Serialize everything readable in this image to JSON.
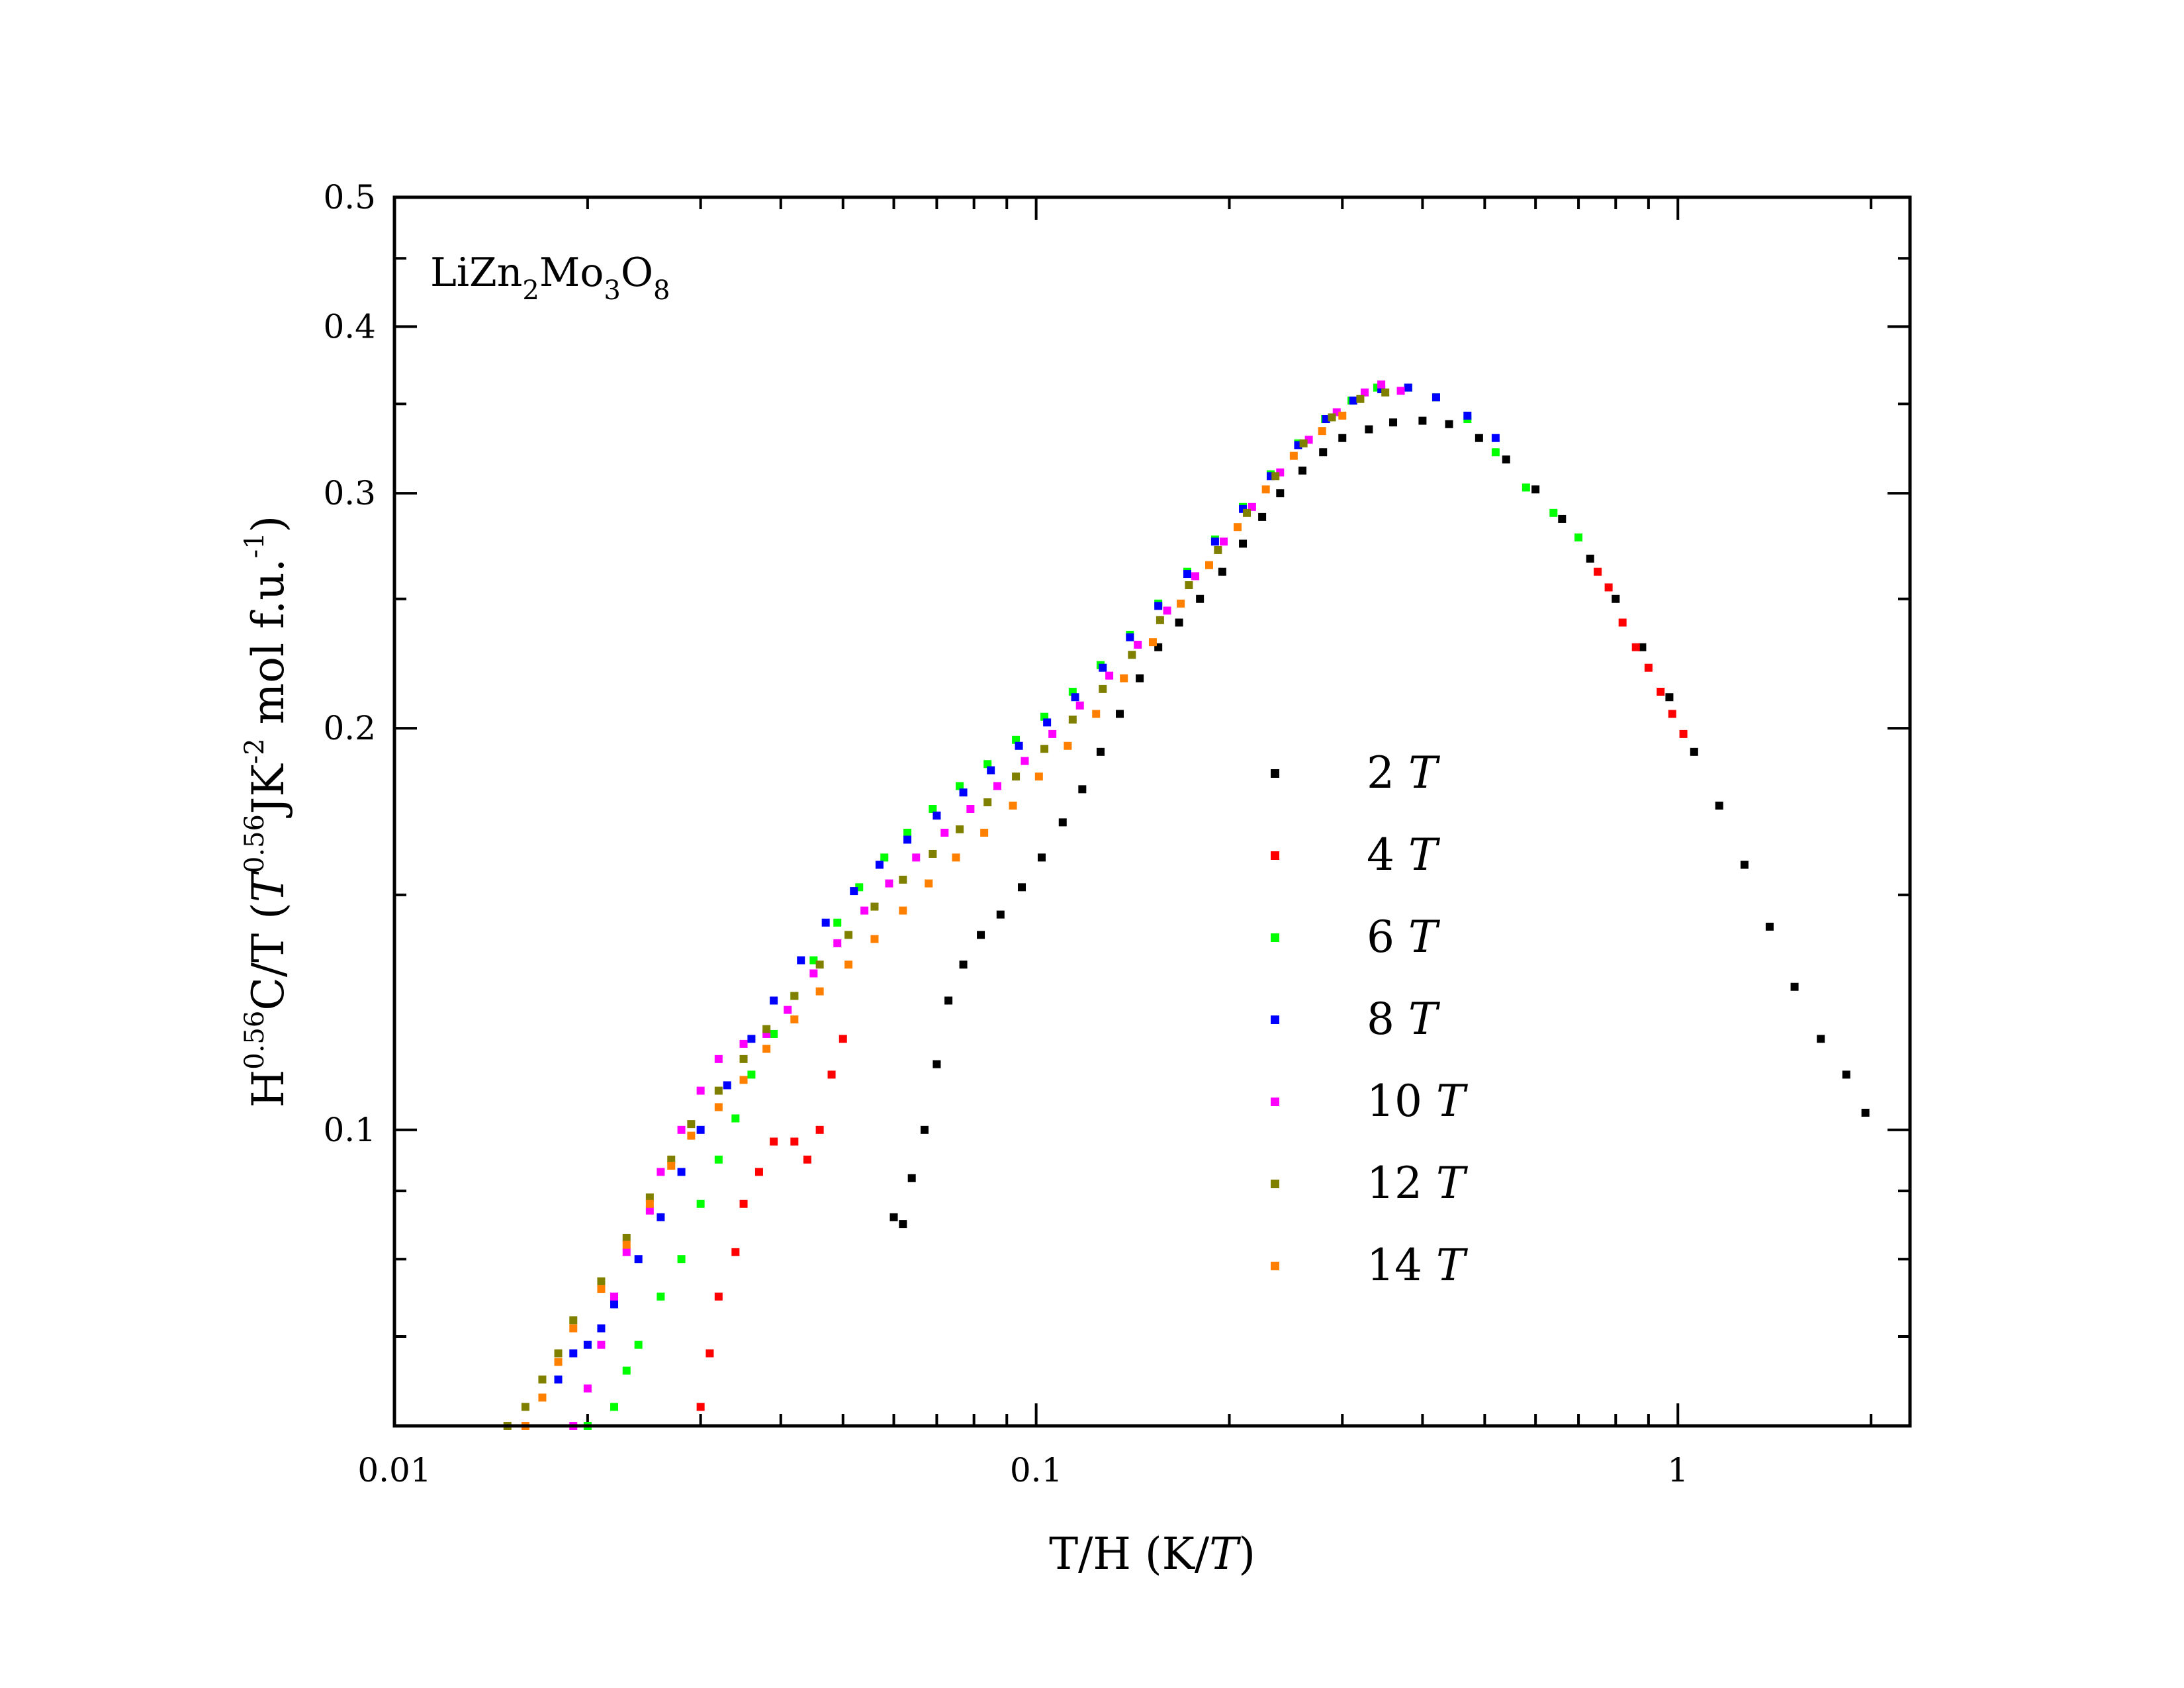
{
  "chart_data": {
    "type": "scatter",
    "xscale": "log",
    "yscale": "log",
    "xlim": [
      0.01,
      2.3
    ],
    "ylim": [
      0.06,
      0.5
    ],
    "xlabel": {
      "main": "T/H (K/",
      "italic": "T",
      "close": ")"
    },
    "ylabel": {
      "base": "H",
      "sup1": "0.56",
      "mid": "C/T (",
      "t_italic": "T",
      "sup2": "0.56",
      "unit1": "JK",
      "sup3": "-2",
      "unit2": " mol f.u.",
      "sup4": "-1",
      "close": ")"
    },
    "annotation": {
      "p1": "LiZn",
      "s1": "2",
      "p2": "Mo",
      "s2": "3",
      "p3": "O",
      "s3": "8"
    },
    "xticks": [
      {
        "value": 0.01,
        "label": "0.01"
      },
      {
        "value": 0.1,
        "label": "0.1"
      },
      {
        "value": 1,
        "label": "1"
      }
    ],
    "yticks": [
      {
        "value": 0.1,
        "label": "0.1"
      },
      {
        "value": 0.2,
        "label": "0.2"
      },
      {
        "value": 0.3,
        "label": "0.3"
      },
      {
        "value": 0.4,
        "label": "0.4"
      },
      {
        "value": 0.5,
        "label": "0.5"
      }
    ],
    "legend_position": "center-right",
    "series": [
      {
        "name": "2",
        "unit": "T",
        "color": "#000000",
        "points": [
          [
            0.06,
            0.086
          ],
          [
            0.062,
            0.085
          ],
          [
            0.064,
            0.092
          ],
          [
            0.067,
            0.1
          ],
          [
            0.07,
            0.112
          ],
          [
            0.073,
            0.125
          ],
          [
            0.077,
            0.133
          ],
          [
            0.082,
            0.14
          ],
          [
            0.088,
            0.145
          ],
          [
            0.095,
            0.152
          ],
          [
            0.102,
            0.16
          ],
          [
            0.11,
            0.17
          ],
          [
            0.118,
            0.18
          ],
          [
            0.126,
            0.192
          ],
          [
            0.135,
            0.205
          ],
          [
            0.145,
            0.218
          ],
          [
            0.155,
            0.23
          ],
          [
            0.167,
            0.24
          ],
          [
            0.18,
            0.25
          ],
          [
            0.195,
            0.262
          ],
          [
            0.21,
            0.275
          ],
          [
            0.225,
            0.288
          ],
          [
            0.24,
            0.3
          ],
          [
            0.26,
            0.312
          ],
          [
            0.28,
            0.322
          ],
          [
            0.3,
            0.33
          ],
          [
            0.33,
            0.335
          ],
          [
            0.36,
            0.339
          ],
          [
            0.4,
            0.34
          ],
          [
            0.44,
            0.338
          ],
          [
            0.49,
            0.33
          ],
          [
            0.54,
            0.318
          ],
          [
            0.6,
            0.302
          ],
          [
            0.66,
            0.287
          ],
          [
            0.73,
            0.268
          ],
          [
            0.8,
            0.25
          ],
          [
            0.88,
            0.23
          ],
          [
            0.97,
            0.211
          ],
          [
            1.06,
            0.192
          ],
          [
            1.16,
            0.175
          ],
          [
            1.27,
            0.158
          ],
          [
            1.39,
            0.142
          ],
          [
            1.52,
            0.128
          ],
          [
            1.67,
            0.117
          ],
          [
            1.83,
            0.11
          ],
          [
            1.96,
            0.103
          ]
        ]
      },
      {
        "name": "4",
        "unit": "T",
        "color": "#ff0000",
        "points": [
          [
            0.03,
            0.062
          ],
          [
            0.031,
            0.068
          ],
          [
            0.032,
            0.075
          ],
          [
            0.034,
            0.081
          ],
          [
            0.035,
            0.088
          ],
          [
            0.037,
            0.093
          ],
          [
            0.039,
            0.098
          ],
          [
            0.042,
            0.098
          ],
          [
            0.044,
            0.095
          ],
          [
            0.046,
            0.1
          ],
          [
            0.048,
            0.11
          ],
          [
            0.05,
            0.117
          ],
          [
            0.75,
            0.262
          ],
          [
            0.78,
            0.255
          ],
          [
            0.82,
            0.24
          ],
          [
            0.86,
            0.23
          ],
          [
            0.9,
            0.222
          ],
          [
            0.94,
            0.213
          ],
          [
            0.98,
            0.205
          ],
          [
            1.02,
            0.198
          ]
        ]
      },
      {
        "name": "6",
        "unit": "T",
        "color": "#00ff00",
        "points": [
          [
            0.02,
            0.06
          ],
          [
            0.022,
            0.062
          ],
          [
            0.023,
            0.066
          ],
          [
            0.024,
            0.069
          ],
          [
            0.026,
            0.075
          ],
          [
            0.028,
            0.08
          ],
          [
            0.03,
            0.088
          ],
          [
            0.032,
            0.095
          ],
          [
            0.034,
            0.102
          ],
          [
            0.036,
            0.11
          ],
          [
            0.039,
            0.118
          ],
          [
            0.042,
            0.126
          ],
          [
            0.045,
            0.134
          ],
          [
            0.049,
            0.143
          ],
          [
            0.053,
            0.152
          ],
          [
            0.058,
            0.16
          ],
          [
            0.063,
            0.167
          ],
          [
            0.069,
            0.174
          ],
          [
            0.076,
            0.181
          ],
          [
            0.084,
            0.188
          ],
          [
            0.093,
            0.196
          ],
          [
            0.103,
            0.204
          ],
          [
            0.114,
            0.213
          ],
          [
            0.126,
            0.223
          ],
          [
            0.14,
            0.235
          ],
          [
            0.155,
            0.248
          ],
          [
            0.172,
            0.262
          ],
          [
            0.19,
            0.277
          ],
          [
            0.21,
            0.293
          ],
          [
            0.232,
            0.31
          ],
          [
            0.256,
            0.327
          ],
          [
            0.282,
            0.341
          ],
          [
            0.31,
            0.352
          ],
          [
            0.34,
            0.36
          ],
          [
            0.38,
            0.36
          ],
          [
            0.42,
            0.354
          ],
          [
            0.47,
            0.341
          ],
          [
            0.52,
            0.322
          ],
          [
            0.58,
            0.303
          ],
          [
            0.64,
            0.29
          ],
          [
            0.7,
            0.278
          ]
        ]
      },
      {
        "name": "8",
        "unit": "T",
        "color": "#0000ff",
        "points": [
          [
            0.018,
            0.065
          ],
          [
            0.019,
            0.068
          ],
          [
            0.02,
            0.069
          ],
          [
            0.021,
            0.071
          ],
          [
            0.022,
            0.074
          ],
          [
            0.024,
            0.08
          ],
          [
            0.026,
            0.086
          ],
          [
            0.028,
            0.093
          ],
          [
            0.03,
            0.1
          ],
          [
            0.033,
            0.108
          ],
          [
            0.036,
            0.117
          ],
          [
            0.039,
            0.125
          ],
          [
            0.043,
            0.134
          ],
          [
            0.047,
            0.143
          ],
          [
            0.052,
            0.151
          ],
          [
            0.057,
            0.158
          ],
          [
            0.063,
            0.165
          ],
          [
            0.07,
            0.172
          ],
          [
            0.077,
            0.179
          ],
          [
            0.085,
            0.186
          ],
          [
            0.094,
            0.194
          ],
          [
            0.104,
            0.202
          ],
          [
            0.115,
            0.211
          ],
          [
            0.127,
            0.222
          ],
          [
            0.14,
            0.234
          ],
          [
            0.155,
            0.247
          ],
          [
            0.172,
            0.261
          ],
          [
            0.19,
            0.276
          ],
          [
            0.21,
            0.292
          ],
          [
            0.232,
            0.309
          ],
          [
            0.256,
            0.326
          ],
          [
            0.283,
            0.341
          ],
          [
            0.312,
            0.352
          ],
          [
            0.345,
            0.359
          ],
          [
            0.38,
            0.36
          ],
          [
            0.42,
            0.354
          ],
          [
            0.47,
            0.343
          ],
          [
            0.52,
            0.33
          ]
        ]
      },
      {
        "name": "10",
        "unit": "T",
        "color": "#ff00ff",
        "points": [
          [
            0.019,
            0.06
          ],
          [
            0.02,
            0.064
          ],
          [
            0.021,
            0.069
          ],
          [
            0.022,
            0.075
          ],
          [
            0.023,
            0.081
          ],
          [
            0.025,
            0.087
          ],
          [
            0.026,
            0.093
          ],
          [
            0.028,
            0.1
          ],
          [
            0.03,
            0.107
          ],
          [
            0.032,
            0.113
          ],
          [
            0.035,
            0.116
          ],
          [
            0.038,
            0.118
          ],
          [
            0.041,
            0.123
          ],
          [
            0.045,
            0.131
          ],
          [
            0.049,
            0.138
          ],
          [
            0.054,
            0.146
          ],
          [
            0.059,
            0.153
          ],
          [
            0.065,
            0.16
          ],
          [
            0.072,
            0.167
          ],
          [
            0.079,
            0.174
          ],
          [
            0.087,
            0.181
          ],
          [
            0.096,
            0.189
          ],
          [
            0.106,
            0.198
          ],
          [
            0.117,
            0.208
          ],
          [
            0.13,
            0.219
          ],
          [
            0.144,
            0.231
          ],
          [
            0.16,
            0.245
          ],
          [
            0.177,
            0.26
          ],
          [
            0.196,
            0.276
          ],
          [
            0.217,
            0.293
          ],
          [
            0.24,
            0.311
          ],
          [
            0.266,
            0.329
          ],
          [
            0.294,
            0.345
          ],
          [
            0.325,
            0.357
          ],
          [
            0.345,
            0.362
          ],
          [
            0.37,
            0.358
          ]
        ]
      },
      {
        "name": "12",
        "unit": "T",
        "color": "#808000",
        "points": [
          [
            0.015,
            0.06
          ],
          [
            0.016,
            0.062
          ],
          [
            0.017,
            0.065
          ],
          [
            0.018,
            0.068
          ],
          [
            0.019,
            0.072
          ],
          [
            0.021,
            0.077
          ],
          [
            0.023,
            0.083
          ],
          [
            0.025,
            0.089
          ],
          [
            0.027,
            0.095
          ],
          [
            0.029,
            0.101
          ],
          [
            0.032,
            0.107
          ],
          [
            0.035,
            0.113
          ],
          [
            0.038,
            0.119
          ],
          [
            0.042,
            0.126
          ],
          [
            0.046,
            0.133
          ],
          [
            0.051,
            0.14
          ],
          [
            0.056,
            0.147
          ],
          [
            0.062,
            0.154
          ],
          [
            0.069,
            0.161
          ],
          [
            0.076,
            0.168
          ],
          [
            0.084,
            0.176
          ],
          [
            0.093,
            0.184
          ],
          [
            0.103,
            0.193
          ],
          [
            0.114,
            0.203
          ],
          [
            0.127,
            0.214
          ],
          [
            0.141,
            0.227
          ],
          [
            0.156,
            0.241
          ],
          [
            0.173,
            0.256
          ],
          [
            0.192,
            0.272
          ],
          [
            0.213,
            0.29
          ],
          [
            0.236,
            0.309
          ],
          [
            0.261,
            0.327
          ],
          [
            0.289,
            0.342
          ],
          [
            0.32,
            0.353
          ],
          [
            0.35,
            0.357
          ]
        ]
      },
      {
        "name": "14",
        "unit": "T",
        "color": "#ff8000",
        "points": [
          [
            0.016,
            0.06
          ],
          [
            0.017,
            0.063
          ],
          [
            0.018,
            0.067
          ],
          [
            0.019,
            0.071
          ],
          [
            0.021,
            0.076
          ],
          [
            0.023,
            0.082
          ],
          [
            0.025,
            0.088
          ],
          [
            0.027,
            0.094
          ],
          [
            0.029,
            0.099
          ],
          [
            0.032,
            0.104
          ],
          [
            0.035,
            0.109
          ],
          [
            0.038,
            0.115
          ],
          [
            0.042,
            0.121
          ],
          [
            0.046,
            0.127
          ],
          [
            0.051,
            0.133
          ],
          [
            0.056,
            0.139
          ],
          [
            0.062,
            0.146
          ],
          [
            0.068,
            0.153
          ],
          [
            0.075,
            0.16
          ],
          [
            0.083,
            0.167
          ],
          [
            0.092,
            0.175
          ],
          [
            0.101,
            0.184
          ],
          [
            0.112,
            0.194
          ],
          [
            0.124,
            0.205
          ],
          [
            0.137,
            0.218
          ],
          [
            0.152,
            0.232
          ],
          [
            0.168,
            0.248
          ],
          [
            0.186,
            0.265
          ],
          [
            0.206,
            0.283
          ],
          [
            0.228,
            0.302
          ],
          [
            0.252,
            0.32
          ],
          [
            0.279,
            0.334
          ],
          [
            0.3,
            0.343
          ]
        ]
      }
    ]
  }
}
